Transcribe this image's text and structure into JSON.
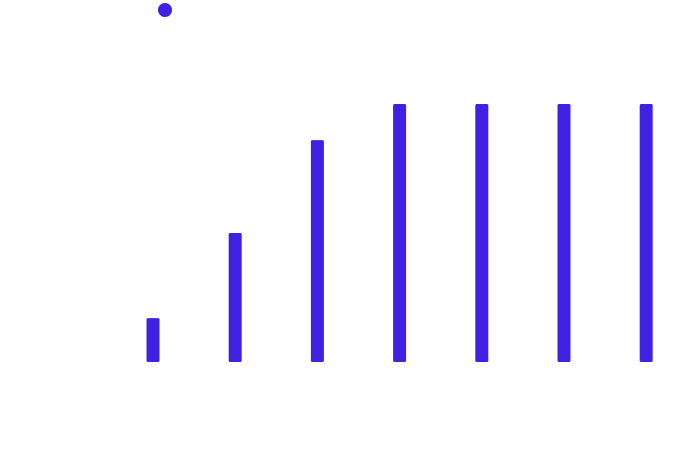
{
  "chart_data": {
    "type": "bar",
    "categories": [
      "",
      "",
      "",
      "",
      "",
      "",
      ""
    ],
    "series": [
      {
        "color": "#4021E4",
        "values": [
          0.17,
          0.5,
          0.86,
          1.0,
          1.0,
          1.0,
          1.0
        ]
      }
    ],
    "ylim": [
      0,
      1
    ],
    "grid": false,
    "legend_position": "top-left"
  }
}
